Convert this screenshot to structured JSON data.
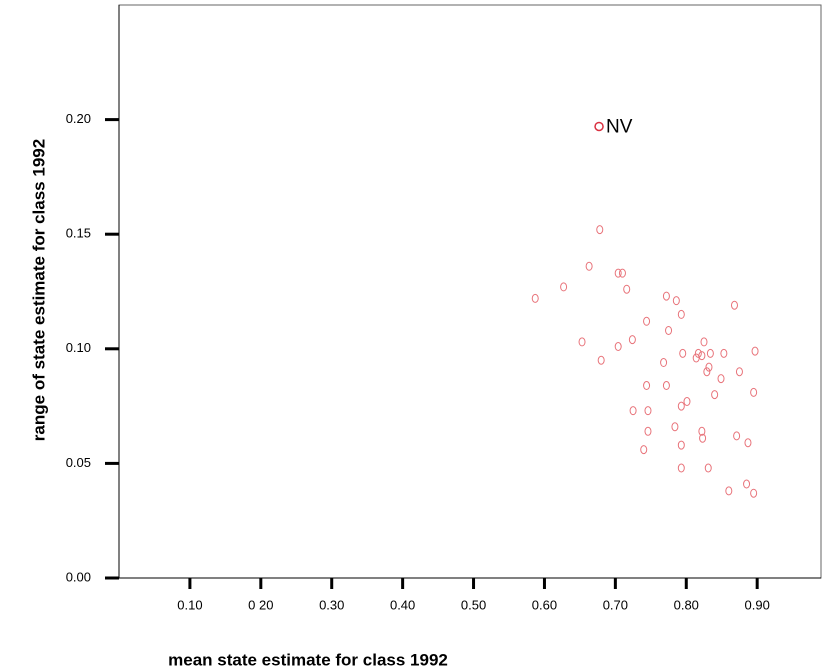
{
  "chart_data": {
    "type": "scatter",
    "x_label": "mean state estimate for class 1992",
    "y_label": "range of state estimate for class 1992",
    "color": "#e8737a",
    "xlim": [
      0,
      0.99
    ],
    "ylim": [
      0,
      0.25
    ],
    "xticks": [
      {
        "value": 0.1,
        "label": "0.10"
      },
      {
        "value": 0.2,
        "label": "0 20"
      },
      {
        "value": 0.3,
        "label": "0.30"
      },
      {
        "value": 0.4,
        "label": "0.40"
      },
      {
        "value": 0.5,
        "label": "0.50"
      },
      {
        "value": 0.6,
        "label": "0.60"
      },
      {
        "value": 0.7,
        "label": "0.70"
      },
      {
        "value": 0.8,
        "label": "0.80"
      },
      {
        "value": 0.9,
        "label": "0.90"
      }
    ],
    "yticks": [
      {
        "value": 0,
        "label": "0.00"
      },
      {
        "value": 0.05,
        "label": "0.05"
      },
      {
        "value": 0.1,
        "label": "0.10"
      },
      {
        "value": 0.15,
        "label": "0.15"
      },
      {
        "value": 0.2,
        "label": "0.20"
      }
    ],
    "x": [
      0.587,
      0.627,
      0.678,
      0.663,
      0.704,
      0.71,
      0.716,
      0.772,
      0.786,
      0.793,
      0.868,
      0.744,
      0.724,
      0.775,
      0.653,
      0.704,
      0.68,
      0.825,
      0.897,
      0.875,
      0.795,
      0.817,
      0.834,
      0.853,
      0.768,
      0.814,
      0.822,
      0.832,
      0.829,
      0.849,
      0.744,
      0.772,
      0.895,
      0.84,
      0.801,
      0.793,
      0.725,
      0.746,
      0.784,
      0.746,
      0.822,
      0.823,
      0.871,
      0.887,
      0.793,
      0.74,
      0.793,
      0.831,
      0.885,
      0.86,
      0.895
    ],
    "values": [
      0.122,
      0.127,
      0.152,
      0.136,
      0.133,
      0.133,
      0.126,
      0.123,
      0.121,
      0.115,
      0.119,
      0.112,
      0.104,
      0.108,
      0.103,
      0.101,
      0.095,
      0.103,
      0.099,
      0.09,
      0.098,
      0.098,
      0.098,
      0.098,
      0.094,
      0.096,
      0.097,
      0.092,
      0.09,
      0.087,
      0.084,
      0.084,
      0.081,
      0.08,
      0.077,
      0.075,
      0.073,
      0.073,
      0.066,
      0.064,
      0.064,
      0.061,
      0.062,
      0.059,
      0.058,
      0.056,
      0.048,
      0.048,
      0.041,
      0.038,
      0.037
    ],
    "annotations": [
      {
        "text": "NV",
        "x": 0.677,
        "y": 0.197
      }
    ]
  }
}
